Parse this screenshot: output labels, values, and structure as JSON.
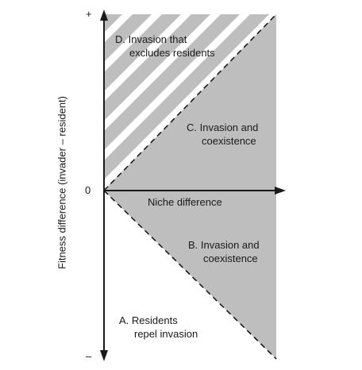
{
  "axes": {
    "y_label": "Fitness difference (invader – resident)",
    "x_label": "Niche difference",
    "plus_tick": "+",
    "zero_tick": "0",
    "minus_tick": "–"
  },
  "regions": {
    "d": {
      "line1": "D. Invasion that",
      "line2": "excludes residents"
    },
    "c_upper": {
      "line1": "C. Invasion and",
      "line2": "coexistence"
    },
    "b_lower": {
      "line1": "B. Invasion and",
      "line2": "coexistence"
    },
    "a": {
      "line1": "A. Residents",
      "line2": "repel invasion"
    }
  },
  "colors": {
    "shade": "#bebebe",
    "axis": "#1a1a1a"
  }
}
